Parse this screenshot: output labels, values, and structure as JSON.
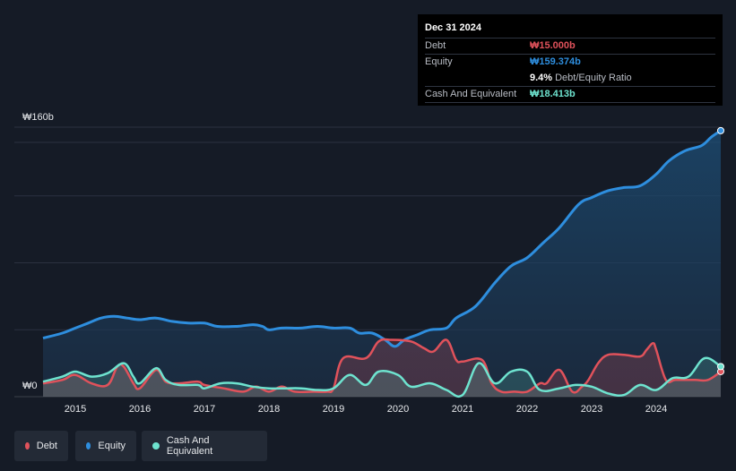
{
  "tooltip": {
    "date": "Dec 31 2024",
    "debt_label": "Debt",
    "debt_value": "₩15.000b",
    "equity_label": "Equity",
    "equity_value": "₩159.374b",
    "ratio_value": "9.4%",
    "ratio_label": "Debt/Equity Ratio",
    "cash_label": "Cash And Equivalent",
    "cash_value": "₩18.413b"
  },
  "legend": {
    "debt": "Debt",
    "equity": "Equity",
    "cash": "Cash And Equivalent"
  },
  "colors": {
    "debt": "#e0525b",
    "equity": "#2e8ede",
    "cash": "#6ee3cf",
    "background": "#151b26"
  },
  "chart_data": {
    "type": "area",
    "y_top_label": "₩160b",
    "y_bottom_label": "₩0",
    "ylim": [
      0,
      160
    ],
    "xlim": [
      2014.5,
      2025.0
    ],
    "x_ticks": [
      "2015",
      "2016",
      "2017",
      "2018",
      "2019",
      "2020",
      "2021",
      "2022",
      "2023",
      "2024"
    ],
    "series": [
      {
        "name": "Debt",
        "points": [
          [
            2014.5,
            8
          ],
          [
            2014.8,
            10
          ],
          [
            2015.0,
            13
          ],
          [
            2015.25,
            8
          ],
          [
            2015.5,
            7
          ],
          [
            2015.65,
            18
          ],
          [
            2015.75,
            18
          ],
          [
            2015.9,
            8
          ],
          [
            2016.0,
            5
          ],
          [
            2016.25,
            16
          ],
          [
            2016.4,
            9
          ],
          [
            2016.6,
            8
          ],
          [
            2016.9,
            9
          ],
          [
            2017.0,
            7
          ],
          [
            2017.3,
            5
          ],
          [
            2017.6,
            3
          ],
          [
            2017.8,
            6
          ],
          [
            2018.0,
            3
          ],
          [
            2018.2,
            6
          ],
          [
            2018.4,
            3
          ],
          [
            2018.7,
            3
          ],
          [
            2018.9,
            3
          ],
          [
            2019.0,
            5
          ],
          [
            2019.15,
            23
          ],
          [
            2019.5,
            23
          ],
          [
            2019.7,
            33
          ],
          [
            2019.9,
            34
          ],
          [
            2020.2,
            33
          ],
          [
            2020.4,
            29
          ],
          [
            2020.55,
            27
          ],
          [
            2020.75,
            34
          ],
          [
            2020.9,
            22
          ],
          [
            2021.0,
            21
          ],
          [
            2021.3,
            22
          ],
          [
            2021.45,
            8
          ],
          [
            2021.6,
            3
          ],
          [
            2021.8,
            3
          ],
          [
            2022.0,
            3
          ],
          [
            2022.2,
            8
          ],
          [
            2022.3,
            8
          ],
          [
            2022.5,
            16
          ],
          [
            2022.7,
            3
          ],
          [
            2022.85,
            6
          ],
          [
            2022.95,
            10
          ],
          [
            2023.1,
            20
          ],
          [
            2023.25,
            25
          ],
          [
            2023.5,
            25
          ],
          [
            2023.75,
            24
          ],
          [
            2023.85,
            28
          ],
          [
            2023.95,
            32
          ],
          [
            2024.0,
            28
          ],
          [
            2024.15,
            10
          ],
          [
            2024.3,
            10
          ],
          [
            2024.6,
            10
          ],
          [
            2024.8,
            10
          ],
          [
            2025.0,
            15
          ]
        ]
      },
      {
        "name": "Equity",
        "points": [
          [
            2014.5,
            35
          ],
          [
            2014.8,
            38
          ],
          [
            2015.0,
            41
          ],
          [
            2015.2,
            44
          ],
          [
            2015.4,
            47
          ],
          [
            2015.6,
            48
          ],
          [
            2015.8,
            47
          ],
          [
            2016.0,
            46
          ],
          [
            2016.25,
            47
          ],
          [
            2016.5,
            45
          ],
          [
            2016.75,
            44
          ],
          [
            2017.0,
            44
          ],
          [
            2017.2,
            42
          ],
          [
            2017.5,
            42
          ],
          [
            2017.75,
            43
          ],
          [
            2017.9,
            42
          ],
          [
            2018.0,
            40
          ],
          [
            2018.2,
            41
          ],
          [
            2018.5,
            41
          ],
          [
            2018.75,
            42
          ],
          [
            2019.0,
            41
          ],
          [
            2019.25,
            41
          ],
          [
            2019.4,
            38
          ],
          [
            2019.6,
            38
          ],
          [
            2019.8,
            34
          ],
          [
            2019.95,
            30
          ],
          [
            2020.1,
            34
          ],
          [
            2020.3,
            37
          ],
          [
            2020.5,
            40
          ],
          [
            2020.75,
            41
          ],
          [
            2020.9,
            47
          ],
          [
            2021.2,
            54
          ],
          [
            2021.5,
            68
          ],
          [
            2021.75,
            78
          ],
          [
            2022.0,
            83
          ],
          [
            2022.25,
            92
          ],
          [
            2022.5,
            101
          ],
          [
            2022.8,
            115
          ],
          [
            2023.0,
            119
          ],
          [
            2023.25,
            123
          ],
          [
            2023.5,
            125
          ],
          [
            2023.75,
            126
          ],
          [
            2024.0,
            133
          ],
          [
            2024.2,
            141
          ],
          [
            2024.45,
            147
          ],
          [
            2024.7,
            150
          ],
          [
            2024.85,
            155
          ],
          [
            2025.0,
            159
          ]
        ]
      },
      {
        "name": "Cash And Equivalent",
        "points": [
          [
            2014.5,
            9
          ],
          [
            2014.8,
            12
          ],
          [
            2015.0,
            15
          ],
          [
            2015.25,
            12
          ],
          [
            2015.5,
            14
          ],
          [
            2015.75,
            20
          ],
          [
            2015.9,
            12
          ],
          [
            2016.0,
            8
          ],
          [
            2016.25,
            17
          ],
          [
            2016.4,
            10
          ],
          [
            2016.6,
            7
          ],
          [
            2016.9,
            7
          ],
          [
            2017.0,
            5
          ],
          [
            2017.25,
            8
          ],
          [
            2017.5,
            8
          ],
          [
            2017.75,
            6
          ],
          [
            2018.0,
            5
          ],
          [
            2018.25,
            5
          ],
          [
            2018.5,
            5
          ],
          [
            2018.75,
            4
          ],
          [
            2019.0,
            5
          ],
          [
            2019.25,
            13
          ],
          [
            2019.5,
            7
          ],
          [
            2019.7,
            15
          ],
          [
            2020.0,
            13
          ],
          [
            2020.2,
            6
          ],
          [
            2020.5,
            8
          ],
          [
            2020.75,
            4
          ],
          [
            2021.0,
            1
          ],
          [
            2021.25,
            20
          ],
          [
            2021.5,
            8
          ],
          [
            2021.75,
            15
          ],
          [
            2022.0,
            15
          ],
          [
            2022.2,
            4
          ],
          [
            2022.5,
            5
          ],
          [
            2022.75,
            7
          ],
          [
            2023.0,
            6
          ],
          [
            2023.25,
            2
          ],
          [
            2023.5,
            1
          ],
          [
            2023.75,
            7
          ],
          [
            2024.0,
            4
          ],
          [
            2024.25,
            11
          ],
          [
            2024.5,
            12
          ],
          [
            2024.75,
            23
          ],
          [
            2025.0,
            18
          ]
        ]
      }
    ],
    "grid": true,
    "legend_position": "bottom-left"
  }
}
